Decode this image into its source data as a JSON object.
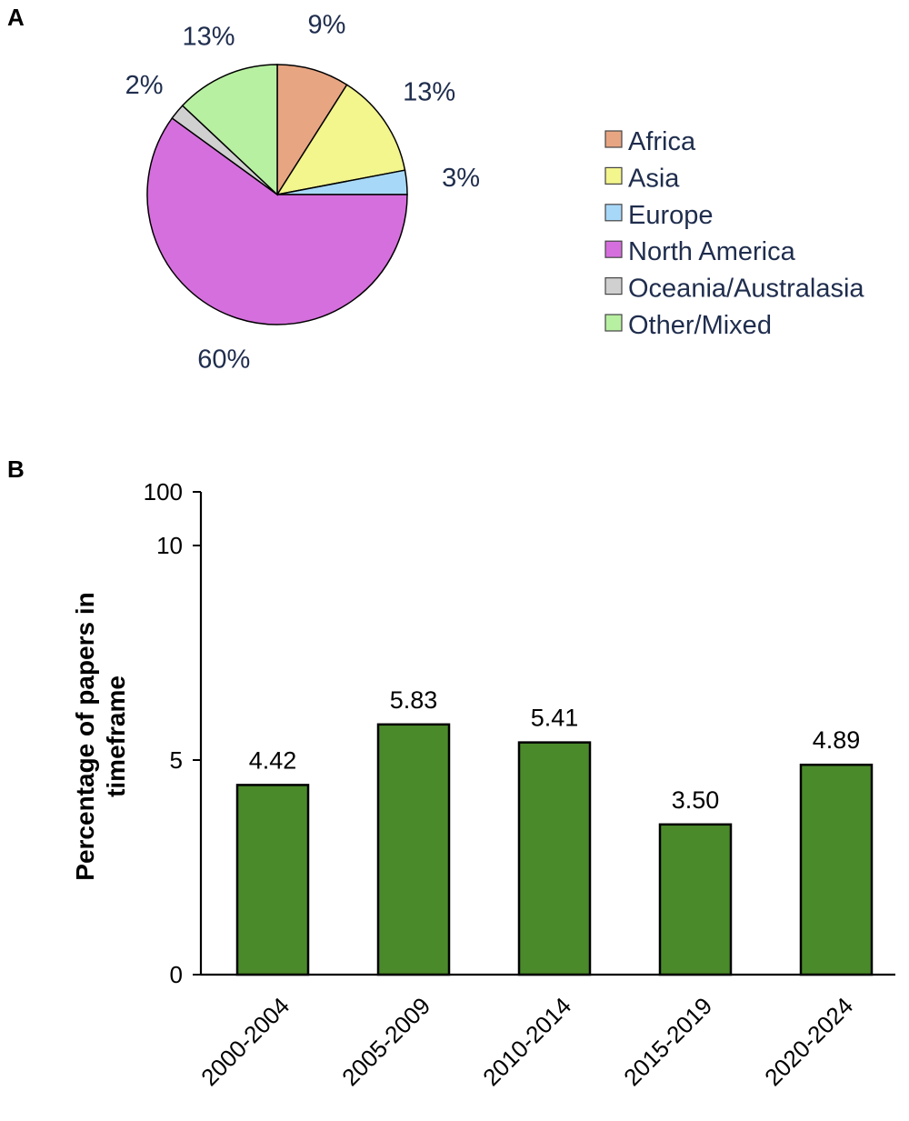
{
  "chart_data": [
    {
      "panel": "A",
      "type": "pie",
      "labels": [
        "Africa",
        "Asia",
        "Europe",
        "North America",
        "Oceania/Australasia",
        "Other/Mixed"
      ],
      "values": [
        9,
        13,
        3,
        60,
        2,
        13
      ],
      "display_labels": [
        "9%",
        "13%",
        "3%",
        "60%",
        "2%",
        "13%"
      ],
      "colors": [
        "#e8a582",
        "#f3f58d",
        "#a8d8f8",
        "#d66fde",
        "#d0d0d0",
        "#b8f0a2"
      ],
      "legend_position": "right"
    },
    {
      "panel": "B",
      "type": "bar",
      "categories": [
        "2000-2004",
        "2005-2009",
        "2010-2014",
        "2015-2019",
        "2020-2024"
      ],
      "values": [
        4.42,
        5.83,
        5.41,
        3.5,
        4.89
      ],
      "display_values": [
        "4.42",
        "5.83",
        "5.41",
        "3.50",
        "4.89"
      ],
      "ylabel": "Percentage of papers in timeframe",
      "xlabel": "",
      "yticks": [
        "0",
        "5",
        "10",
        "100"
      ],
      "ylim": [
        0,
        100
      ],
      "axis_break": "linear 0-10, compressed above 10",
      "bar_color": "#4b8a2b"
    }
  ]
}
